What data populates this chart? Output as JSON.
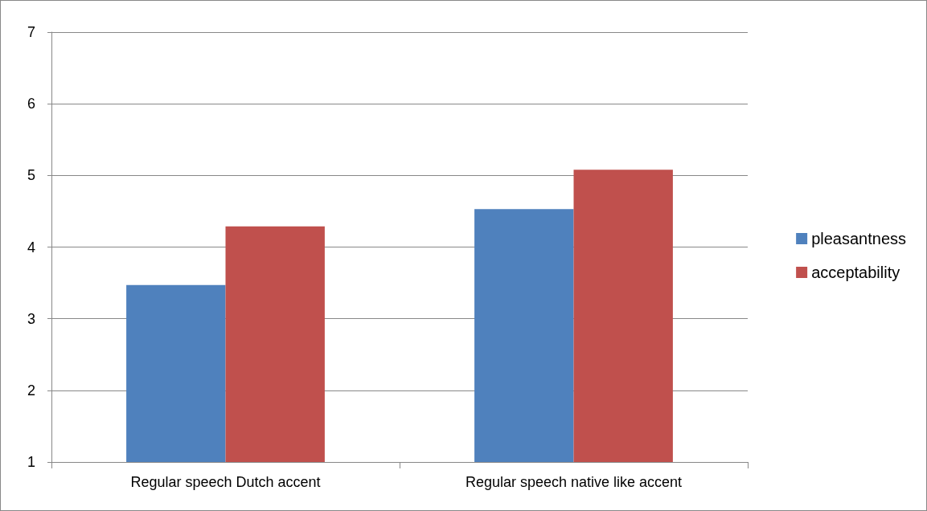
{
  "chart_data": {
    "type": "bar",
    "categories": [
      "Regular speech Dutch accent",
      "Regular speech native like accent"
    ],
    "series": [
      {
        "name": "pleasantness",
        "color": "#4f81bd",
        "values": [
          3.47,
          4.53
        ]
      },
      {
        "name": "acceptability",
        "color": "#c0504d",
        "values": [
          4.29,
          5.08
        ]
      }
    ],
    "ylim": [
      1,
      7
    ],
    "yticks": [
      1,
      2,
      3,
      4,
      5,
      6,
      7
    ],
    "grid": "y",
    "legend": "right"
  }
}
